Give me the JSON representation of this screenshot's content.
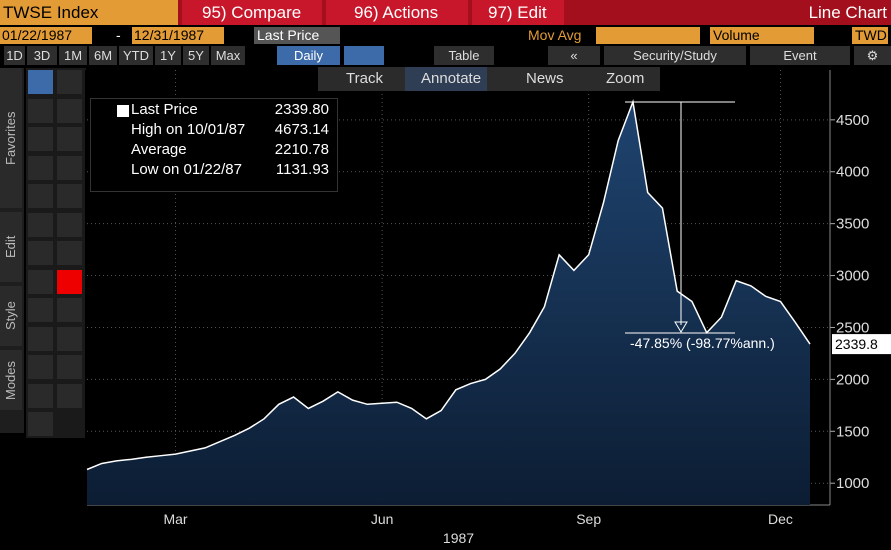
{
  "header": {
    "security": "TWSE Index",
    "compare": "95) Compare",
    "actions": "96) Actions",
    "edit": "97) Edit",
    "chart_type": "Line Chart"
  },
  "controls": {
    "start_date": "01/22/1987",
    "dash": "-",
    "end_date": "12/31/1987",
    "field": "Last Price",
    "mov_avg": "Mov Avg",
    "volume": "Volume",
    "currency": "TWD"
  },
  "periods": [
    "1D",
    "3D",
    "1M",
    "6M",
    "YTD",
    "1Y",
    "5Y",
    "Max"
  ],
  "frequency": "Daily",
  "toolbar": {
    "table": "Table",
    "security_study": "Security/Study",
    "event": "Event"
  },
  "chart_toolbar": [
    "Track",
    "Annotate",
    "News",
    "Zoom"
  ],
  "side_tabs": [
    "Favorites",
    "Edit",
    "Style",
    "Modes"
  ],
  "stats": [
    {
      "label": "High on 10/01/87",
      "value": "4673.14"
    },
    {
      "label": "Average",
      "value": "2210.78"
    },
    {
      "label": "Low on 01/22/87",
      "value": "1131.93"
    }
  ],
  "last_price_value": "2339.80",
  "last_price_tag": "2339.8",
  "annotation": "-47.85% (-98.77%ann.)",
  "chart_data": {
    "type": "area",
    "xlabel": "1987",
    "categories": [
      null,
      null,
      null,
      null,
      null,
      null,
      "Mar",
      null,
      null,
      null,
      null,
      null,
      null,
      null,
      null,
      null,
      null,
      null,
      null,
      null,
      "Jun",
      null,
      null,
      null,
      null,
      null,
      null,
      null,
      null,
      null,
      null,
      null,
      null,
      null,
      "Sep",
      null,
      null,
      null,
      null,
      null,
      null,
      null,
      null,
      null,
      null,
      null,
      null,
      "Dec",
      null,
      null
    ],
    "series": [
      {
        "name": "Last Price",
        "color": "#ffffff",
        "values": [
          1131.93,
          1190,
          1215,
          1230,
          1250,
          1265,
          1280,
          1310,
          1340,
          1400,
          1460,
          1530,
          1620,
          1760,
          1830,
          1720,
          1790,
          1880,
          1800,
          1760,
          1770,
          1780,
          1720,
          1620,
          1700,
          1900,
          1960,
          2000,
          2100,
          2250,
          2450,
          2700,
          3200,
          3050,
          3200,
          3700,
          4300,
          4673.14,
          3800,
          3650,
          2850,
          2750,
          2450,
          2600,
          2950,
          2900,
          2800,
          2750,
          2550,
          2339.8
        ]
      }
    ],
    "ylim": [
      790,
      4980
    ],
    "yticks": [
      1000,
      1500,
      2000,
      2500,
      3000,
      3500,
      4000,
      4500
    ],
    "grid": true
  }
}
